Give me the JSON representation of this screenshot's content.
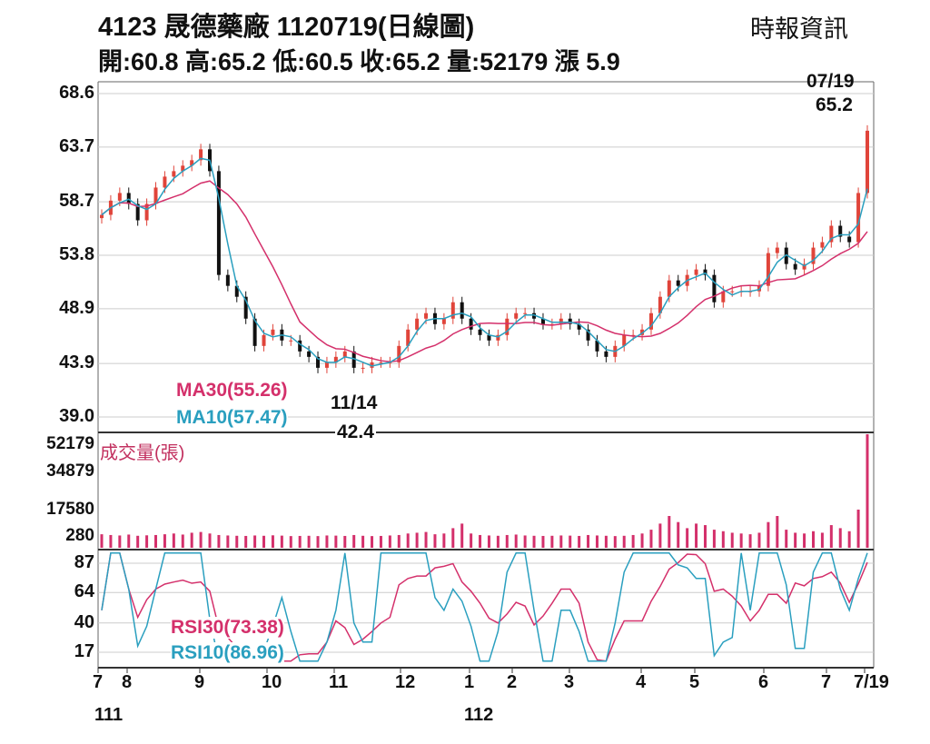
{
  "header": {
    "title": "4123  晟德藥廠 1120719(日線圖)",
    "source": "時報資訊",
    "ohlc": "開:60.8 高:65.2 低:60.5 收:65.2 量:52179 漲 5.9"
  },
  "annotations": {
    "last_date": "07/19",
    "last_price": "65.2",
    "low_date": "11/14",
    "low_price": "42.4"
  },
  "legend": {
    "ma30": "MA30(55.26)",
    "ma10": "MA10(57.47)",
    "volume": "成交量(張)",
    "rsi30": "RSI30(73.38)",
    "rsi10": "RSI10(86.96)"
  },
  "colors": {
    "up": "#e0443a",
    "down": "#111111",
    "ma30": "#d4306b",
    "ma10": "#2a9fbf",
    "volume": "#d4306b"
  },
  "chart_data": {
    "type": "candlestick",
    "title": "4123 晟德藥廠 1120719(日線圖)",
    "price_ticks": [
      "68.6",
      "63.7",
      "58.7",
      "53.8",
      "48.9",
      "43.9",
      "39.0"
    ],
    "price_ylim": [
      39.0,
      68.6
    ],
    "volume_ticks": [
      "52179",
      "34879",
      "17580",
      "280"
    ],
    "rsi_ticks": [
      "87",
      "64",
      "40",
      "17"
    ],
    "x_ticks": [
      "7",
      "8",
      "9",
      "10",
      "11",
      "12",
      "1",
      "2",
      "3",
      "4",
      "5",
      "6",
      "7",
      "7/19"
    ],
    "x_year_labels": [
      "111",
      "112"
    ],
    "closes": [
      57.5,
      58.8,
      59.5,
      58.5,
      57,
      58.5,
      60,
      61,
      61.5,
      62,
      62.5,
      63.5,
      61.5,
      52,
      51,
      50,
      48,
      45.5,
      46.5,
      47,
      46,
      46,
      45,
      44.5,
      43.5,
      44,
      44.5,
      45,
      43.5,
      43.5,
      44,
      44,
      44,
      45.5,
      47,
      48,
      48.5,
      47.5,
      48,
      49.5,
      48,
      47,
      46.5,
      46,
      46.5,
      48,
      48.5,
      48.5,
      48,
      47.5,
      47.5,
      48,
      47.5,
      47,
      46,
      45,
      44.5,
      45.5,
      46.5,
      46.5,
      47,
      48.5,
      50,
      51.5,
      51,
      52,
      52.5,
      52,
      49.5,
      50.5,
      50.5,
      50.5,
      50.5,
      51,
      54,
      54.5,
      53,
      52.5,
      53,
      54.5,
      55,
      56.5,
      55.5,
      55,
      59.5,
      65.2
    ],
    "volumes": [
      2000,
      1500,
      1200,
      1800,
      1000,
      1300,
      1500,
      2000,
      2500,
      1800,
      3000,
      3500,
      2500,
      1500,
      1200,
      1000,
      900,
      1200,
      1000,
      1300,
      1100,
      800,
      900,
      1000,
      800,
      1200,
      1100,
      900,
      1500,
      1000,
      800,
      900,
      1200,
      1500,
      2500,
      3000,
      3500,
      2000,
      2500,
      6000,
      9000,
      2500,
      1500,
      1200,
      1000,
      1500,
      1800,
      1200,
      1000,
      900,
      1000,
      1200,
      1100,
      900,
      1500,
      1200,
      1000,
      800,
      1000,
      1500,
      2500,
      5000,
      9000,
      14000,
      10000,
      6000,
      9000,
      8000,
      5000,
      4000,
      3000,
      2500,
      2000,
      3000,
      10000,
      14000,
      5000,
      3000,
      2500,
      4000,
      3000,
      8000,
      6000,
      4000,
      18000,
      52179
    ]
  }
}
